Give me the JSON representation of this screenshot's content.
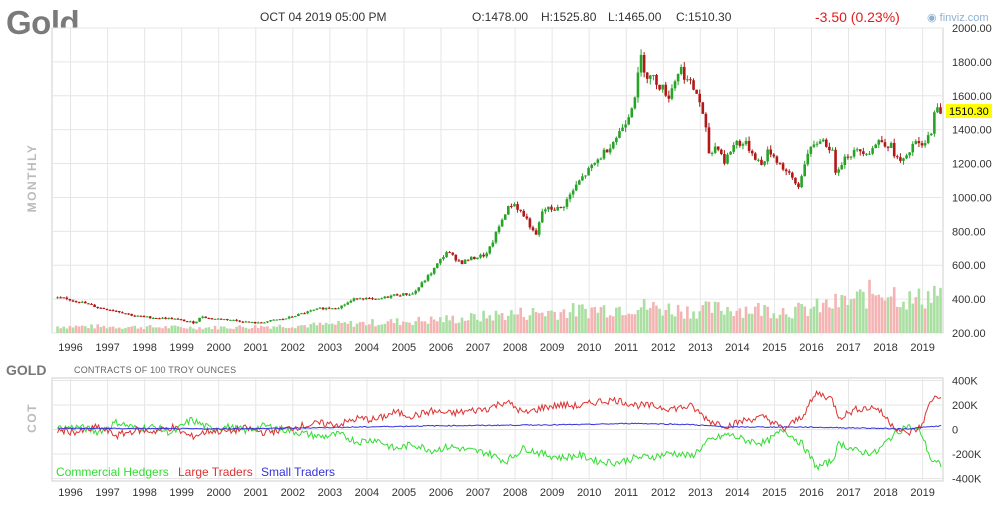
{
  "header": {
    "symbol": "Gold",
    "datetime": "OCT 04 2019 05:00 PM",
    "open": "O:1478.00",
    "high": "H:1525.80",
    "low": "L:1465.00",
    "close": "C:1510.30",
    "change": "-3.50 (0.23%)",
    "brand": "finviz.com"
  },
  "colors": {
    "up": "#27a327",
    "down": "#b11818",
    "volume_up": "#a9dfa1",
    "volume_down": "#f4b4b4",
    "commercial": "#33dd33",
    "large": "#dd3333",
    "small": "#3333dd",
    "price_tag": "#ffff00",
    "grid": "#e6e6e6"
  },
  "chart_data": [
    {
      "type": "candlestick",
      "panel": "price",
      "side_label": "MONTHLY",
      "ylim": [
        200,
        2000
      ],
      "yticks": [
        "2000.00",
        "1800.00",
        "1600.00",
        "1400.00",
        "1200.00",
        "1000.00",
        "800.00",
        "600.00",
        "400.00",
        "200.00"
      ],
      "ytick_values": [
        2000,
        1800,
        1600,
        1400,
        1200,
        1000,
        800,
        600,
        400,
        200
      ],
      "last_price_label": "1510.30",
      "last_price": 1510.3,
      "x_tick_labels": [
        "1996",
        "1997",
        "1998",
        "1999",
        "2000",
        "2001",
        "2002",
        "2003",
        "2004",
        "2005",
        "2006",
        "2007",
        "2008",
        "2009",
        "2010",
        "2011",
        "2012",
        "2013",
        "2014",
        "2015",
        "2016",
        "2017",
        "2018",
        "2019"
      ],
      "x_range": [
        1995.75,
        2019.8
      ],
      "close_path": [
        [
          1996.0,
          405
        ],
        [
          1996.5,
          385
        ],
        [
          1997.0,
          350
        ],
        [
          1997.5,
          330
        ],
        [
          1998.0,
          300
        ],
        [
          1998.5,
          290
        ],
        [
          1999.0,
          285
        ],
        [
          1999.6,
          260
        ],
        [
          1999.8,
          300
        ],
        [
          2000.0,
          285
        ],
        [
          2000.5,
          280
        ],
        [
          2001.0,
          265
        ],
        [
          2001.3,
          258
        ],
        [
          2001.8,
          278
        ],
        [
          2002.0,
          282
        ],
        [
          2002.5,
          315
        ],
        [
          2003.0,
          345
        ],
        [
          2003.5,
          352
        ],
        [
          2004.0,
          410
        ],
        [
          2004.5,
          395
        ],
        [
          2005.0,
          425
        ],
        [
          2005.5,
          432
        ],
        [
          2006.0,
          560
        ],
        [
          2006.4,
          680
        ],
        [
          2006.8,
          615
        ],
        [
          2007.0,
          635
        ],
        [
          2007.5,
          665
        ],
        [
          2008.0,
          920
        ],
        [
          2008.2,
          970
        ],
        [
          2008.6,
          860
        ],
        [
          2008.8,
          760
        ],
        [
          2009.0,
          930
        ],
        [
          2009.5,
          935
        ],
        [
          2010.0,
          1100
        ],
        [
          2010.5,
          1225
        ],
        [
          2011.0,
          1360
        ],
        [
          2011.3,
          1480
        ],
        [
          2011.5,
          1620
        ],
        [
          2011.65,
          1825
        ],
        [
          2011.8,
          1720
        ],
        [
          2012.0,
          1700
        ],
        [
          2012.4,
          1600
        ],
        [
          2012.7,
          1770
        ],
        [
          2012.9,
          1690
        ],
        [
          2013.2,
          1600
        ],
        [
          2013.4,
          1390
        ],
        [
          2013.5,
          1240
        ],
        [
          2013.7,
          1320
        ],
        [
          2013.9,
          1210
        ],
        [
          2014.2,
          1330
        ],
        [
          2014.5,
          1310
        ],
        [
          2014.9,
          1190
        ],
        [
          2015.1,
          1280
        ],
        [
          2015.5,
          1170
        ],
        [
          2015.9,
          1060
        ],
        [
          2016.1,
          1240
        ],
        [
          2016.5,
          1350
        ],
        [
          2016.8,
          1280
        ],
        [
          2016.9,
          1160
        ],
        [
          2017.2,
          1250
        ],
        [
          2017.6,
          1280
        ],
        [
          2017.8,
          1270
        ],
        [
          2018.1,
          1340
        ],
        [
          2018.4,
          1300
        ],
        [
          2018.6,
          1210
        ],
        [
          2018.8,
          1220
        ],
        [
          2019.0,
          1320
        ],
        [
          2019.3,
          1300
        ],
        [
          2019.5,
          1410
        ],
        [
          2019.6,
          1520
        ],
        [
          2019.75,
          1510
        ]
      ],
      "volume_profile": [
        [
          1996.0,
          0.15
        ],
        [
          2000.0,
          0.12
        ],
        [
          2003.0,
          0.18
        ],
        [
          2005.0,
          0.25
        ],
        [
          2007.0,
          0.33
        ],
        [
          2008.0,
          0.42
        ],
        [
          2010.0,
          0.5
        ],
        [
          2011.5,
          0.6
        ],
        [
          2013.0,
          0.5
        ],
        [
          2014.0,
          0.55
        ],
        [
          2016.0,
          0.5
        ],
        [
          2017.5,
          0.75
        ],
        [
          2018.2,
          1.0
        ],
        [
          2019.0,
          0.7
        ],
        [
          2019.7,
          0.95
        ]
      ]
    },
    {
      "type": "line",
      "panel": "cot",
      "title": "GOLD",
      "subtitle": "CONTRACTS OF 100 TROY OUNCES",
      "side_label": "COT",
      "ylim": [
        -420000,
        420000
      ],
      "yticks": [
        "400K",
        "200K",
        "0",
        "-200K",
        "-400K"
      ],
      "ytick_values": [
        400000,
        200000,
        0,
        -200000,
        -400000
      ],
      "x_tick_labels": [
        "1996",
        "1997",
        "1998",
        "1999",
        "2000",
        "2001",
        "2002",
        "2003",
        "2004",
        "2005",
        "2006",
        "2007",
        "2008",
        "2009",
        "2010",
        "2011",
        "2012",
        "2013",
        "2014",
        "2015",
        "2016",
        "2017",
        "2018",
        "2019"
      ],
      "x_range": [
        1995.75,
        2019.8
      ],
      "series": [
        {
          "name": "Commercial Hedgers",
          "color_key": "commercial",
          "points": [
            [
              1995.9,
              10000
            ],
            [
              1996.5,
              20000
            ],
            [
              1997.0,
              -20000
            ],
            [
              1997.5,
              60000
            ],
            [
              1998.0,
              10000
            ],
            [
              1998.5,
              20000
            ],
            [
              1999.0,
              -30000
            ],
            [
              1999.5,
              80000
            ],
            [
              2000.0,
              10000
            ],
            [
              2000.5,
              20000
            ],
            [
              2001.0,
              -10000
            ],
            [
              2001.5,
              30000
            ],
            [
              2002.0,
              0
            ],
            [
              2002.5,
              -30000
            ],
            [
              2003.0,
              -60000
            ],
            [
              2003.5,
              -40000
            ],
            [
              2004.0,
              -100000
            ],
            [
              2004.5,
              -80000
            ],
            [
              2005.0,
              -160000
            ],
            [
              2005.5,
              -120000
            ],
            [
              2006.0,
              -170000
            ],
            [
              2006.5,
              -140000
            ],
            [
              2007.0,
              -170000
            ],
            [
              2007.5,
              -190000
            ],
            [
              2008.0,
              -260000
            ],
            [
              2008.5,
              -150000
            ],
            [
              2009.0,
              -200000
            ],
            [
              2009.5,
              -230000
            ],
            [
              2010.0,
              -210000
            ],
            [
              2010.5,
              -260000
            ],
            [
              2011.0,
              -270000
            ],
            [
              2011.5,
              -230000
            ],
            [
              2012.0,
              -220000
            ],
            [
              2012.5,
              -190000
            ],
            [
              2013.0,
              -220000
            ],
            [
              2013.5,
              -90000
            ],
            [
              2014.0,
              -40000
            ],
            [
              2014.5,
              -90000
            ],
            [
              2015.0,
              -110000
            ],
            [
              2015.5,
              0
            ],
            [
              2016.0,
              -120000
            ],
            [
              2016.4,
              -310000
            ],
            [
              2016.8,
              -260000
            ],
            [
              2017.0,
              -110000
            ],
            [
              2017.5,
              -180000
            ],
            [
              2018.0,
              -190000
            ],
            [
              2018.4,
              -60000
            ],
            [
              2018.8,
              30000
            ],
            [
              2019.2,
              -20000
            ],
            [
              2019.5,
              -260000
            ],
            [
              2019.75,
              -290000
            ]
          ]
        },
        {
          "name": "Large Traders",
          "color_key": "large",
          "points": [
            [
              1995.9,
              -10000
            ],
            [
              1996.5,
              -20000
            ],
            [
              1997.0,
              20000
            ],
            [
              1997.5,
              -50000
            ],
            [
              1998.0,
              -5000
            ],
            [
              1998.5,
              -15000
            ],
            [
              1999.0,
              20000
            ],
            [
              1999.5,
              -60000
            ],
            [
              2000.0,
              -10000
            ],
            [
              2000.5,
              -15000
            ],
            [
              2001.0,
              10000
            ],
            [
              2001.5,
              -25000
            ],
            [
              2002.0,
              0
            ],
            [
              2002.5,
              30000
            ],
            [
              2003.0,
              50000
            ],
            [
              2003.5,
              40000
            ],
            [
              2004.0,
              90000
            ],
            [
              2004.5,
              80000
            ],
            [
              2005.0,
              140000
            ],
            [
              2005.5,
              110000
            ],
            [
              2006.0,
              150000
            ],
            [
              2006.5,
              130000
            ],
            [
              2007.0,
              150000
            ],
            [
              2007.5,
              170000
            ],
            [
              2008.0,
              230000
            ],
            [
              2008.5,
              130000
            ],
            [
              2009.0,
              180000
            ],
            [
              2009.5,
              200000
            ],
            [
              2010.0,
              190000
            ],
            [
              2010.5,
              230000
            ],
            [
              2011.0,
              240000
            ],
            [
              2011.5,
              200000
            ],
            [
              2012.0,
              190000
            ],
            [
              2012.5,
              170000
            ],
            [
              2013.0,
              190000
            ],
            [
              2013.5,
              70000
            ],
            [
              2014.0,
              30000
            ],
            [
              2014.5,
              80000
            ],
            [
              2015.0,
              100000
            ],
            [
              2015.5,
              0
            ],
            [
              2016.0,
              110000
            ],
            [
              2016.4,
              300000
            ],
            [
              2016.8,
              250000
            ],
            [
              2017.0,
              100000
            ],
            [
              2017.5,
              170000
            ],
            [
              2018.0,
              180000
            ],
            [
              2018.4,
              50000
            ],
            [
              2018.8,
              -40000
            ],
            [
              2019.2,
              20000
            ],
            [
              2019.5,
              250000
            ],
            [
              2019.75,
              280000
            ]
          ]
        },
        {
          "name": "Small Traders",
          "color_key": "small",
          "points": [
            [
              1995.9,
              10000
            ],
            [
              2000.0,
              5000
            ],
            [
              2002.0,
              10000
            ],
            [
              2004.0,
              20000
            ],
            [
              2006.0,
              30000
            ],
            [
              2008.0,
              35000
            ],
            [
              2010.0,
              40000
            ],
            [
              2011.5,
              50000
            ],
            [
              2013.0,
              40000
            ],
            [
              2014.0,
              20000
            ],
            [
              2016.0,
              20000
            ],
            [
              2017.0,
              15000
            ],
            [
              2018.0,
              10000
            ],
            [
              2018.8,
              5000
            ],
            [
              2019.75,
              30000
            ]
          ]
        }
      ]
    }
  ]
}
